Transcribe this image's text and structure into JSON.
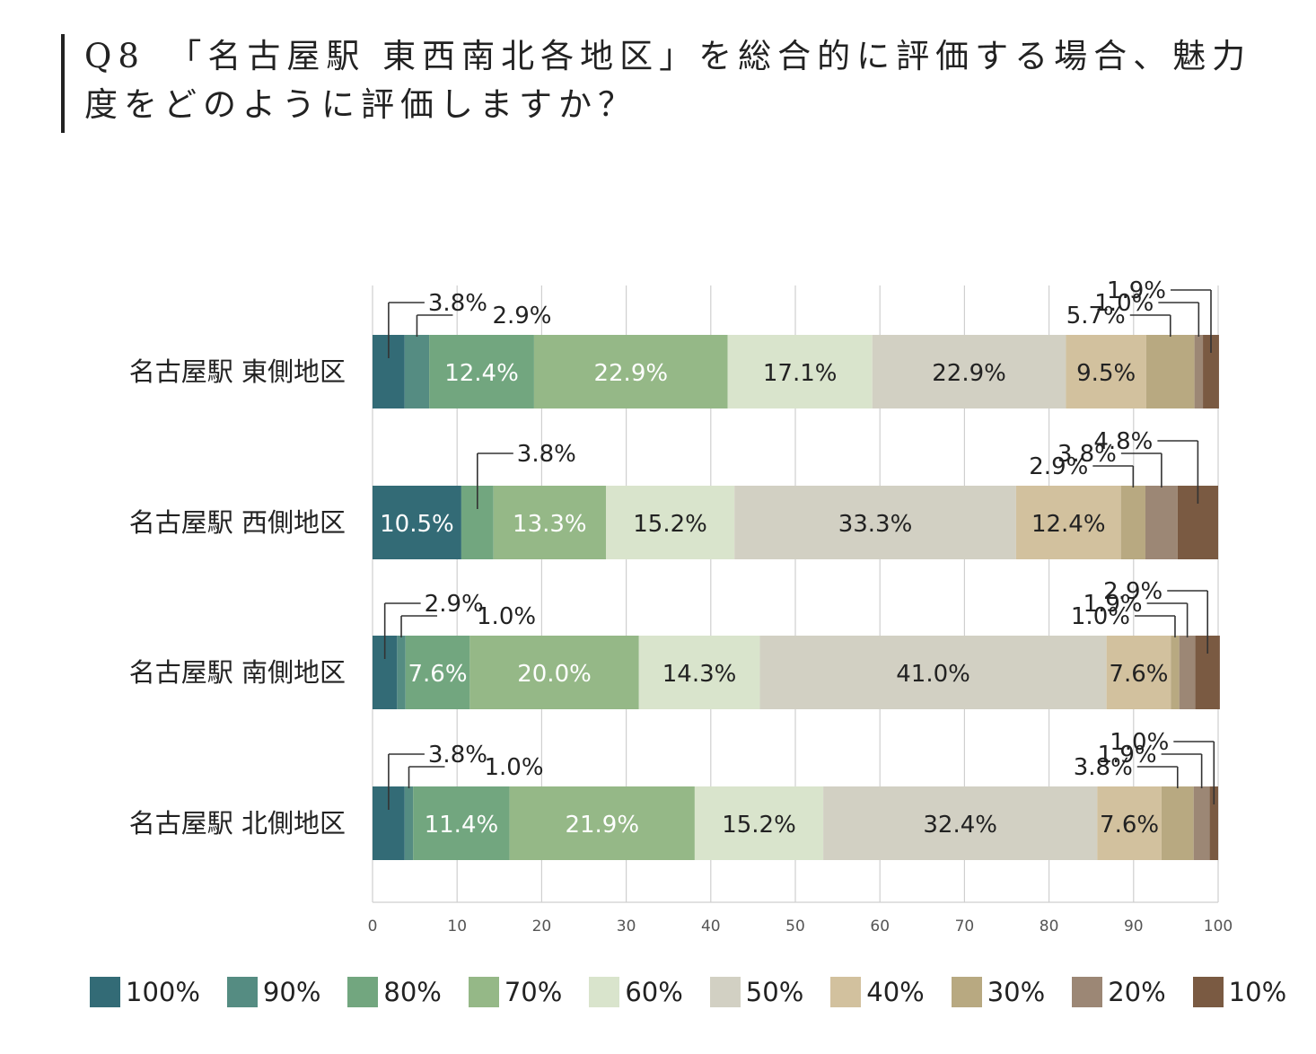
{
  "title": "Q8　「名古屋駅 東西南北各地区」を総合的に評価する場合、魅力度をどのように評価しますか？",
  "chart_data": {
    "type": "bar",
    "orientation": "horizontal",
    "stacked": true,
    "xlim": [
      0,
      100
    ],
    "x_ticks": [
      "0",
      "10",
      "20",
      "30",
      "40",
      "50",
      "60",
      "70",
      "80",
      "90",
      "100"
    ],
    "grid": true,
    "legend_position": "bottom",
    "categories": [
      "名古屋駅 東側地区",
      "名古屋駅 西側地区",
      "名古屋駅 南側地区",
      "名古屋駅 北側地区"
    ],
    "series": [
      {
        "name": "100%",
        "color": "#336b76",
        "values": [
          3.8,
          10.5,
          2.9,
          3.8
        ],
        "labels": [
          "3.8%",
          "10.5%",
          "2.9%",
          "3.8%"
        ]
      },
      {
        "name": "90%",
        "color": "#558c82",
        "values": [
          2.9,
          0.0,
          1.0,
          1.0
        ],
        "labels": [
          "2.9%",
          "",
          "1.0%",
          "1.0%"
        ]
      },
      {
        "name": "80%",
        "color": "#72a67f",
        "values": [
          12.4,
          3.8,
          7.6,
          11.4
        ],
        "labels": [
          "12.4%",
          "3.8%",
          "7.6%",
          "11.4%"
        ]
      },
      {
        "name": "70%",
        "color": "#95b887",
        "values": [
          22.9,
          13.3,
          20.0,
          21.9
        ],
        "labels": [
          "22.9%",
          "13.3%",
          "20.0%",
          "21.9%"
        ]
      },
      {
        "name": "60%",
        "color": "#d9e4cc",
        "values": [
          17.1,
          15.2,
          14.3,
          15.2
        ],
        "labels": [
          "17.1%",
          "15.2%",
          "14.3%",
          "15.2%"
        ]
      },
      {
        "name": "50%",
        "color": "#d2d0c3",
        "values": [
          22.9,
          33.3,
          41.0,
          32.4
        ],
        "labels": [
          "22.9%",
          "33.3%",
          "41.0%",
          "32.4%"
        ]
      },
      {
        "name": "40%",
        "color": "#d2c19e",
        "values": [
          9.5,
          12.4,
          7.6,
          7.6
        ],
        "labels": [
          "9.5%",
          "12.4%",
          "7.6%",
          "7.6%"
        ]
      },
      {
        "name": "30%",
        "color": "#b8a981",
        "values": [
          5.7,
          2.9,
          1.0,
          3.8
        ],
        "labels": [
          "5.7%",
          "2.9%",
          "1.0%",
          "3.8%"
        ]
      },
      {
        "name": "20%",
        "color": "#9c8775",
        "values": [
          1.0,
          3.8,
          1.9,
          1.9
        ],
        "labels": [
          "1.0%",
          "3.8%",
          "1.9%",
          "1.9%"
        ]
      },
      {
        "name": "10%",
        "color": "#7a5a42",
        "values": [
          1.9,
          4.8,
          2.9,
          1.0
        ],
        "labels": [
          "1.9%",
          "4.8%",
          "2.9%",
          "1.0%"
        ]
      }
    ]
  }
}
